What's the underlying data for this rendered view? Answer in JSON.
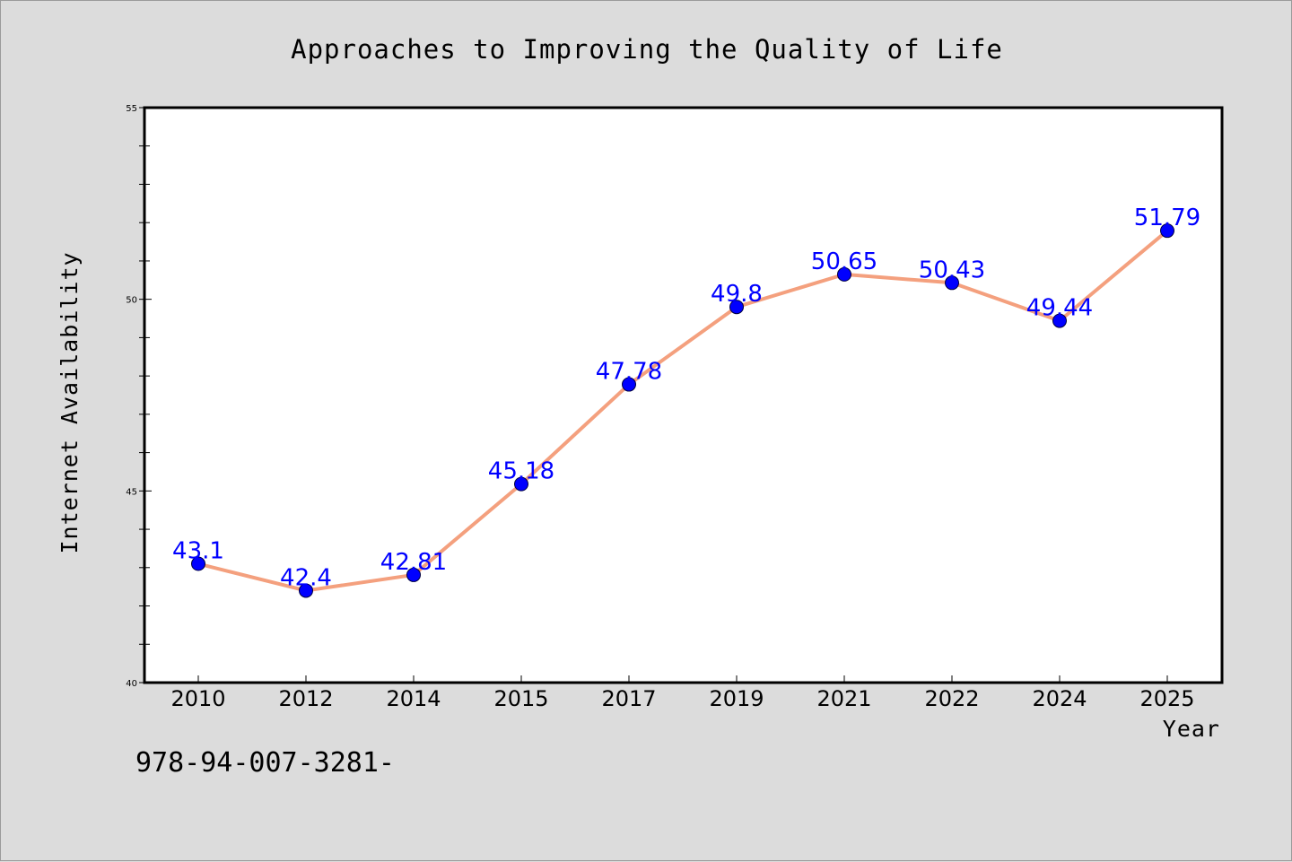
{
  "chart_data": {
    "type": "line",
    "title": "Approaches to Improving the Quality of Life",
    "xlabel": "Year",
    "ylabel": "Internet Availability",
    "categories": [
      "2010",
      "2012",
      "2014",
      "2015",
      "2017",
      "2019",
      "2021",
      "2022",
      "2024",
      "2025"
    ],
    "values": [
      43.1,
      42.4,
      42.81,
      45.18,
      47.78,
      49.8,
      50.65,
      50.43,
      49.44,
      51.79
    ],
    "data_labels": [
      "43.1",
      "42.4",
      "42.81",
      "45.18",
      "47.78",
      "49.8",
      "50.65",
      "50.43",
      "49.44",
      "51.79"
    ],
    "ylim": [
      40,
      55
    ],
    "yticks": [
      "40",
      "45",
      "50",
      "55"
    ],
    "grid": false,
    "line_color": "#f4a07e",
    "marker_color": "#0000ff",
    "label_color": "#0000ff"
  },
  "footnote": "978-94-007-3281-"
}
